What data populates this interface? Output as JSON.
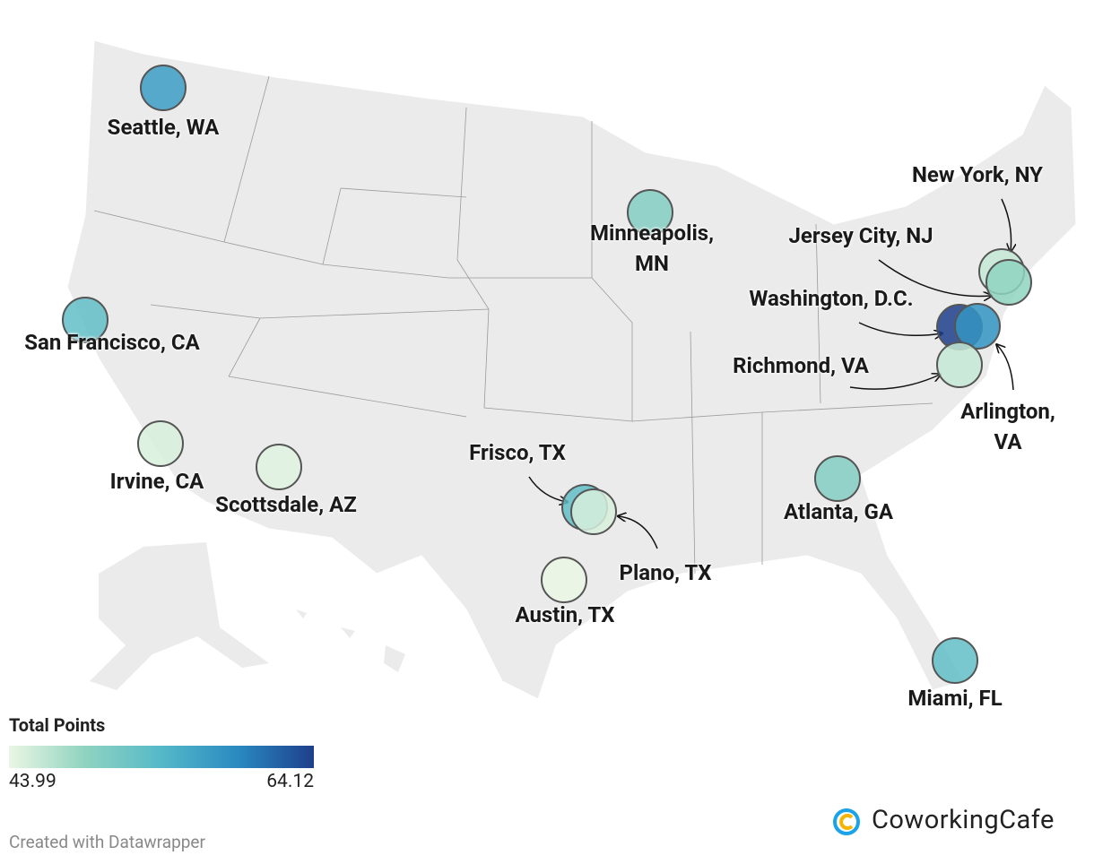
{
  "legend": {
    "title": "Total Points",
    "min": 43.99,
    "max": 64.12
  },
  "cities": [
    {
      "name": "Seattle, WA",
      "value": 57
    },
    {
      "name": "Minneapolis, MN",
      "value": 50
    },
    {
      "name": "San Francisco, CA",
      "value": 53
    },
    {
      "name": "Irvine, CA",
      "value": 45
    },
    {
      "name": "Scottsdale, AZ",
      "value": 44.5
    },
    {
      "name": "Frisco, TX",
      "value": 53
    },
    {
      "name": "Plano, TX",
      "value": 45
    },
    {
      "name": "Austin, TX",
      "value": 44
    },
    {
      "name": "Atlanta, GA",
      "value": 50
    },
    {
      "name": "Miami, FL",
      "value": 53
    },
    {
      "name": "New York, NY",
      "value": 46
    },
    {
      "name": "Jersey City, NJ",
      "value": 49
    },
    {
      "name": "Washington, D.C.",
      "value": 64.12
    },
    {
      "name": "Arlington, VA",
      "value": 58
    },
    {
      "name": "Richmond, VA",
      "value": 46
    }
  ],
  "footer": "Created with Datawrapper",
  "brand": "CoworkingCafe"
}
